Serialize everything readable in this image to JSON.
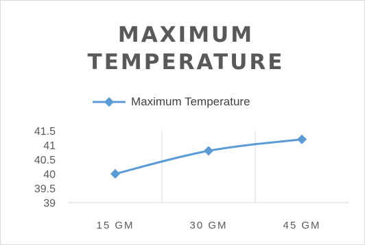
{
  "chart_data": {
    "type": "line",
    "title_lines": [
      "MAXIMUM",
      "TEMPERATURE"
    ],
    "categories": [
      "15 GM",
      "30 GM",
      "45 GM"
    ],
    "series": [
      {
        "name": "Maximum Temperature",
        "values": [
          40,
          40.8,
          41.2
        ]
      }
    ],
    "y_ticks": [
      "41.5",
      "41",
      "40.5",
      "40",
      "39.5",
      "39"
    ],
    "ylim": [
      39,
      41.5
    ],
    "grid": "vertical",
    "legend_position": "top",
    "line_color": "#5b9bd5"
  }
}
